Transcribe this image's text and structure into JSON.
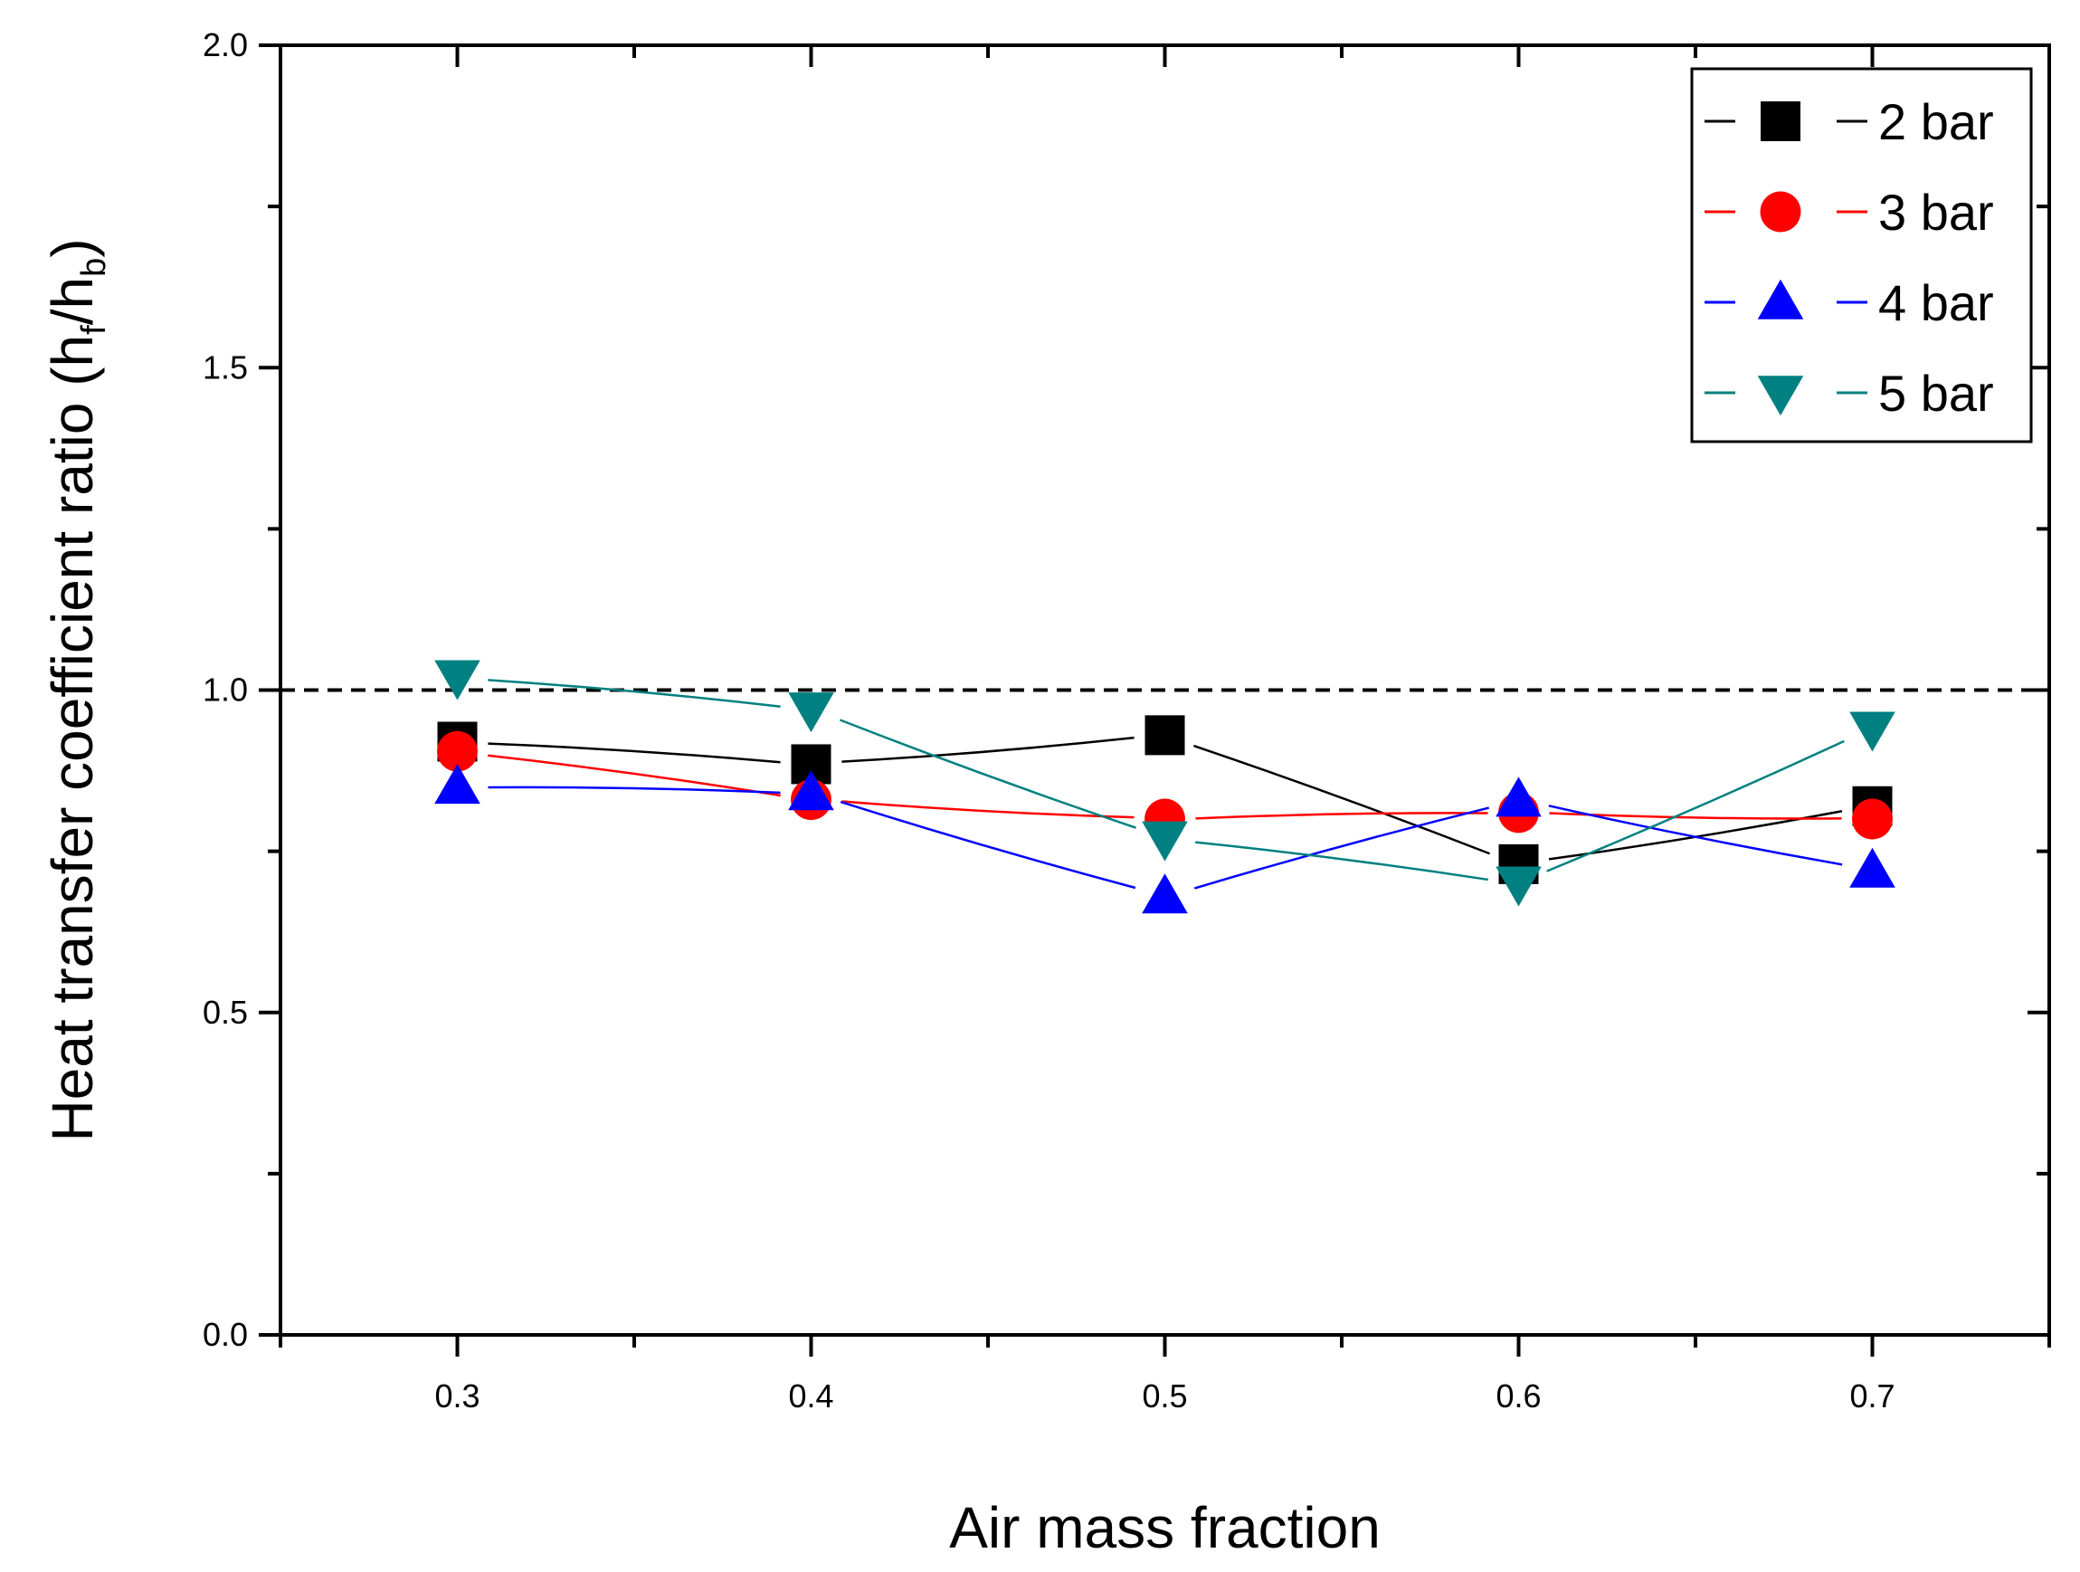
{
  "chart_data": {
    "type": "scatter",
    "title": "",
    "xlabel": "Air mass fraction",
    "ylabel": {
      "main": "Heat transfer coefficient ratio (h",
      "sub1": "f",
      "slash": "/h",
      "sub2": "b",
      "close": ")"
    },
    "xlim": [
      0.25,
      0.75
    ],
    "ylim": [
      0.0,
      2.0
    ],
    "x_ticks": [
      {
        "value": 0.3,
        "label": "0.3"
      },
      {
        "value": 0.4,
        "label": "0.4"
      },
      {
        "value": 0.5,
        "label": "0.5"
      },
      {
        "value": 0.6,
        "label": "0.6"
      },
      {
        "value": 0.7,
        "label": "0.7"
      }
    ],
    "x_minor_ticks": [
      0.25,
      0.35,
      0.45,
      0.55,
      0.65,
      0.75
    ],
    "y_ticks": [
      {
        "value": 0.0,
        "label": "0.0"
      },
      {
        "value": 0.5,
        "label": "0.5"
      },
      {
        "value": 1.0,
        "label": "1.0"
      },
      {
        "value": 1.5,
        "label": "1.5"
      },
      {
        "value": 2.0,
        "label": "2.0"
      }
    ],
    "y_minor_ticks": [
      0.25,
      0.75,
      1.25,
      1.75
    ],
    "reference_line": {
      "y": 1.0,
      "style": "dashed",
      "color": "#000000"
    },
    "legend_position": "top-right",
    "series": [
      {
        "name": "2 bar",
        "marker": "square",
        "color": "#000000",
        "x": [
          0.3,
          0.4,
          0.5,
          0.6,
          0.7
        ],
        "y": [
          0.92,
          0.885,
          0.93,
          0.73,
          0.82
        ]
      },
      {
        "name": "3 bar",
        "marker": "circle",
        "color": "#ff0000",
        "x": [
          0.3,
          0.4,
          0.5,
          0.6,
          0.7
        ],
        "y": [
          0.905,
          0.83,
          0.8,
          0.81,
          0.8
        ]
      },
      {
        "name": "4 bar",
        "marker": "triangle-up",
        "color": "#0000ff",
        "x": [
          0.3,
          0.4,
          0.5,
          0.6,
          0.7
        ],
        "y": [
          0.85,
          0.84,
          0.68,
          0.83,
          0.72
        ]
      },
      {
        "name": "5 bar",
        "marker": "triangle-down",
        "color": "#008080",
        "x": [
          0.3,
          0.4,
          0.5,
          0.6,
          0.7
        ],
        "y": [
          1.02,
          0.97,
          0.77,
          0.7,
          0.94
        ]
      }
    ]
  }
}
